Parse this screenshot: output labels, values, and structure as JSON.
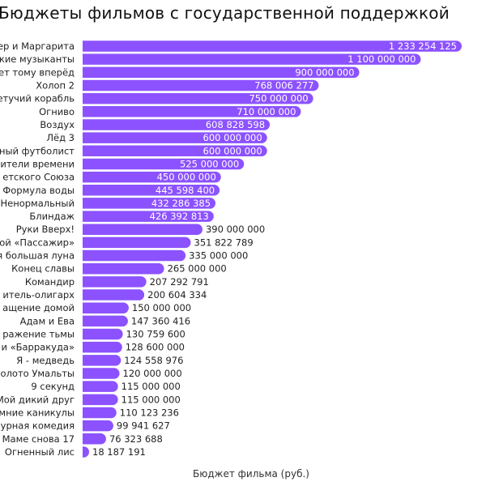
{
  "chart_data": {
    "type": "bar",
    "orientation": "horizontal",
    "title": "Бюджеты фильмов с государственной поддержкой",
    "xlabel": "Бюджет фильма (руб.)",
    "ylabel": "",
    "grid": false,
    "bar_color": "#8c52ff",
    "categories": [
      "ер и Маргарита",
      "кие музыканты",
      "ет тому вперёд",
      "Холоп 2",
      "етучий корабль",
      "Огниво",
      "Воздух",
      "Лёд 3",
      "ный футболист",
      "ители времени",
      "етского Союза",
      "Формула воды",
      "Ненормальный",
      "Блиндаж",
      "Руки Вверх!",
      "ой «Пассажир»",
      "я большая луна",
      "Конец славы",
      "Командир",
      "итель-олигарх",
      "ащение домой",
      "Адам и Ева",
      "ражение тьмы",
      "и «Барракуда»",
      "Я - медведь",
      "олото Умальты",
      "9 секунд",
      "Мой дикий друг",
      "мние каникулы",
      "урная комедия",
      "Маме снова 17",
      "Огненный лис"
    ],
    "values": [
      1233254125,
      1100000000,
      900000000,
      768006277,
      750000000,
      710000000,
      608828598,
      600000000,
      600000000,
      525000000,
      450000000,
      445598400,
      432286385,
      426392813,
      390000000,
      351822789,
      335000000,
      265000000,
      207292791,
      200604334,
      150000000,
      147360416,
      130759600,
      128600000,
      124558976,
      120000000,
      115000000,
      115000000,
      110123236,
      99941627,
      76323688,
      18187191
    ],
    "value_labels": [
      "1 233 254 125",
      "1 100 000 000",
      "900 000 000",
      "768 006 277",
      "750 000 000",
      "710 000 000",
      "608 828 598",
      "600 000 000",
      "600 000 000",
      "525 000 000",
      "450 000 000",
      "445 598 400",
      "432 286 385",
      "426 392 813",
      "390 000 000",
      "351 822 789",
      "335 000 000",
      "265 000 000",
      "207 292 791",
      "200 604 334",
      "150 000 000",
      "147 360 416",
      "130 759 600",
      "128 600 000",
      "124 558 976",
      "120 000 000",
      "115 000 000",
      "115 000 000",
      "110 123 236",
      "99 941 627",
      "76 323 688",
      "18 187 191"
    ]
  }
}
